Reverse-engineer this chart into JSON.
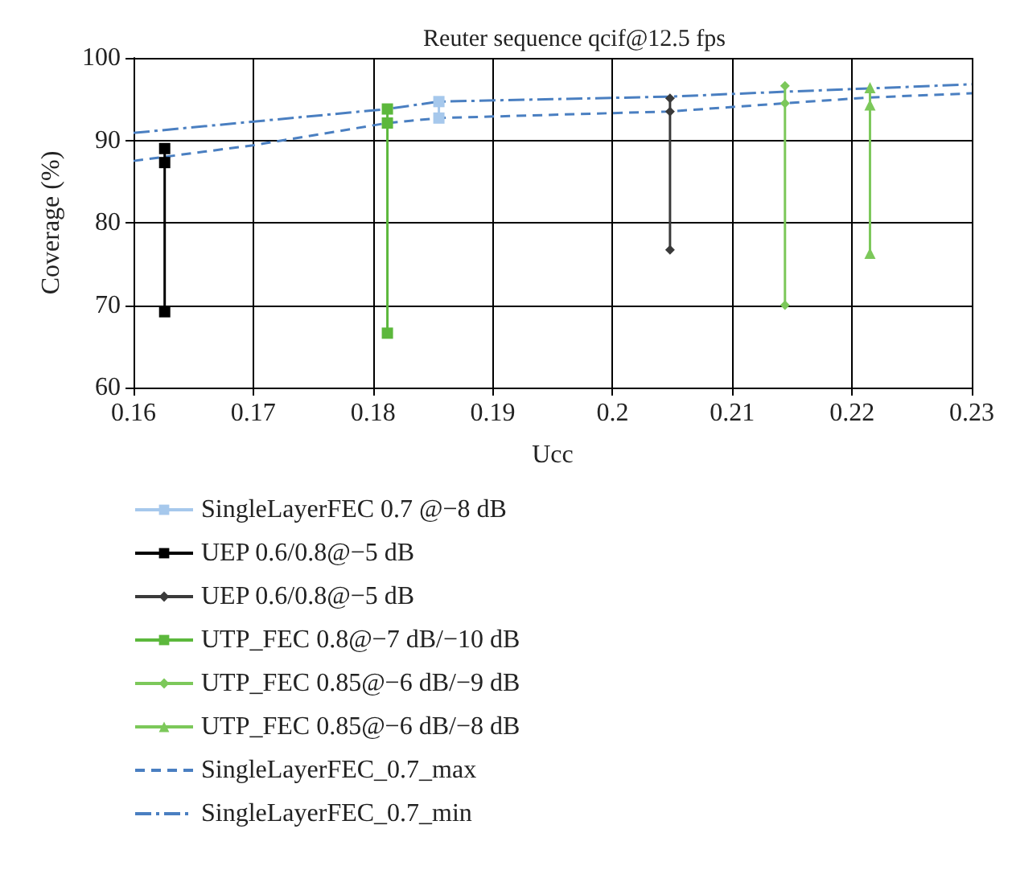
{
  "chart_data": {
    "type": "line",
    "title": "Reuter sequence qcif@12.5 fps",
    "xlabel": "Ucc",
    "ylabel": "Coverage (%)",
    "xlim": [
      0.16,
      0.23
    ],
    "xticks": [
      0.16,
      0.17,
      0.18,
      0.19,
      0.2,
      0.21,
      0.22,
      0.23
    ],
    "ylim": [
      60,
      100
    ],
    "yticks": [
      60,
      70,
      80,
      90,
      100
    ],
    "grid": true,
    "legend": "bottom",
    "series": [
      {
        "name": "SingleLayerFEC 0.7 @−8 dB",
        "color": "#a6c8ec",
        "marker": "square",
        "line_style": "solid",
        "x": [
          0.1855,
          0.1855
        ],
        "values": [
          94.7,
          92.7
        ]
      },
      {
        "name": "UEP 0.6/0.8@−5 dB",
        "color": "#000000",
        "marker": "square",
        "line_style": "solid",
        "x": [
          0.1626,
          0.1626,
          0.1626
        ],
        "values": [
          89.0,
          87.3,
          69.2
        ]
      },
      {
        "name": "UEP 0.6/0.8@−5 dB",
        "color": "#3a3a3a",
        "marker": "diamond",
        "line_style": "solid",
        "x": [
          0.2048,
          0.2048,
          0.2048
        ],
        "values": [
          95.1,
          93.5,
          76.7
        ]
      },
      {
        "name": "UTP_FEC 0.8@−7 dB/−10 dB",
        "color": "#5cb83c",
        "marker": "square",
        "line_style": "solid",
        "x": [
          0.1812,
          0.1812,
          0.1812
        ],
        "values": [
          93.8,
          92.1,
          66.6
        ]
      },
      {
        "name": "UTP_FEC 0.85@−6 dB/−9 dB",
        "color": "#7cc85a",
        "marker": "diamond",
        "line_style": "solid",
        "x": [
          0.2144,
          0.2144,
          0.2144
        ],
        "values": [
          96.6,
          94.5,
          70.0
        ]
      },
      {
        "name": "UTP_FEC 0.85@−6 dB/−8 dB",
        "color": "#7cc85a",
        "marker": "triangle",
        "line_style": "solid",
        "x": [
          0.2215,
          0.2215,
          0.2215
        ],
        "values": [
          96.4,
          94.3,
          76.3
        ]
      },
      {
        "name": "SingleLayerFEC_0.7_max",
        "color": "#4a7fc1",
        "marker": "none",
        "line_style": "dashed",
        "x": [
          0.16,
          0.17,
          0.1812,
          0.1855,
          0.2048,
          0.2144,
          0.2215,
          0.23
        ],
        "values": [
          87.5,
          89.4,
          92.1,
          92.7,
          93.5,
          94.5,
          95.2,
          95.7
        ]
      },
      {
        "name": "SingleLayerFEC_0.7_min",
        "color": "#4a7fc1",
        "marker": "none",
        "line_style": "dashdot",
        "x": [
          0.16,
          0.1812,
          0.1855,
          0.2048,
          0.2144,
          0.2215,
          0.23
        ],
        "values": [
          90.9,
          93.8,
          94.7,
          95.3,
          95.9,
          96.3,
          96.8
        ]
      }
    ]
  }
}
